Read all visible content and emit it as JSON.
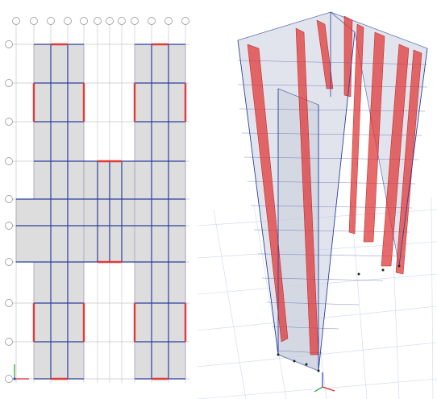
{
  "views": {
    "plan": {
      "name": "plan-view",
      "grid_bubble_label": ""
    },
    "model": {
      "name": "3d-model-view"
    }
  },
  "colors": {
    "slab": "#dddddd",
    "beam": "#2b3f9e",
    "shear_wall": "#e03a3a",
    "grid_line": "#c8c8c8",
    "ground_grid": "#cfd6ef",
    "axis_x": "#d22b2b",
    "axis_y": "#22a63a",
    "axis_z": "#2b3fd0"
  },
  "icons": {
    "axis_triad": "axis-triad-icon",
    "grid_bubble": "grid-bubble-icon",
    "support": "support-icon"
  }
}
